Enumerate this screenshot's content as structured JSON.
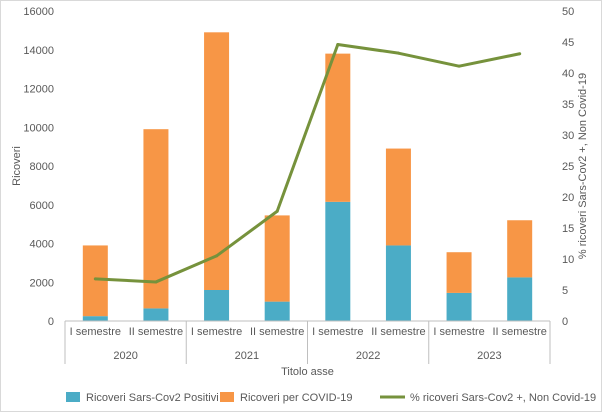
{
  "chart_data": {
    "type": "bar+line",
    "title": "",
    "xlabel": "Titolo asse",
    "ylabel_left": "Ricoveri",
    "ylabel_right": "% ricoveri Sars-Cov2 +, Non Covid-19",
    "ylim_left": [
      0,
      16000
    ],
    "yticks_left": [
      0,
      2000,
      4000,
      6000,
      8000,
      10000,
      12000,
      14000,
      16000
    ],
    "ylim_right": [
      0,
      50
    ],
    "yticks_right": [
      0,
      5,
      10,
      15,
      20,
      25,
      30,
      35,
      40,
      45,
      50
    ],
    "grid": false,
    "legend_position": "bottom",
    "categories": [
      "I semestre",
      "II semestre",
      "I semestre",
      "II semestre",
      "I semestre",
      "II semestre",
      "I semestre",
      "II semestre"
    ],
    "groups": [
      {
        "label": "2020",
        "span": 2
      },
      {
        "label": "2021",
        "span": 2
      },
      {
        "label": "2022",
        "span": 2
      },
      {
        "label": "2023",
        "span": 2
      }
    ],
    "series": [
      {
        "name": "Ricoveri Sars-Cov2 Positivi",
        "type": "bar",
        "stack": "a",
        "axis": "left",
        "color": "#4BACC6",
        "values": [
          250,
          650,
          1600,
          1000,
          6150,
          3900,
          1450,
          2250
        ]
      },
      {
        "name": "Ricoveri per COVID-19",
        "type": "bar",
        "stack": "a",
        "axis": "left",
        "color": "#F79646",
        "values": [
          3650,
          9250,
          13300,
          4450,
          7650,
          5000,
          2100,
          2950
        ]
      },
      {
        "name": "% ricoveri Sars-Cov2 +, Non Covid-19",
        "type": "line",
        "axis": "right",
        "color": "#76923C",
        "values": [
          6.8,
          6.3,
          10.5,
          17.7,
          44.6,
          43.2,
          41.1,
          43.1
        ]
      }
    ]
  }
}
